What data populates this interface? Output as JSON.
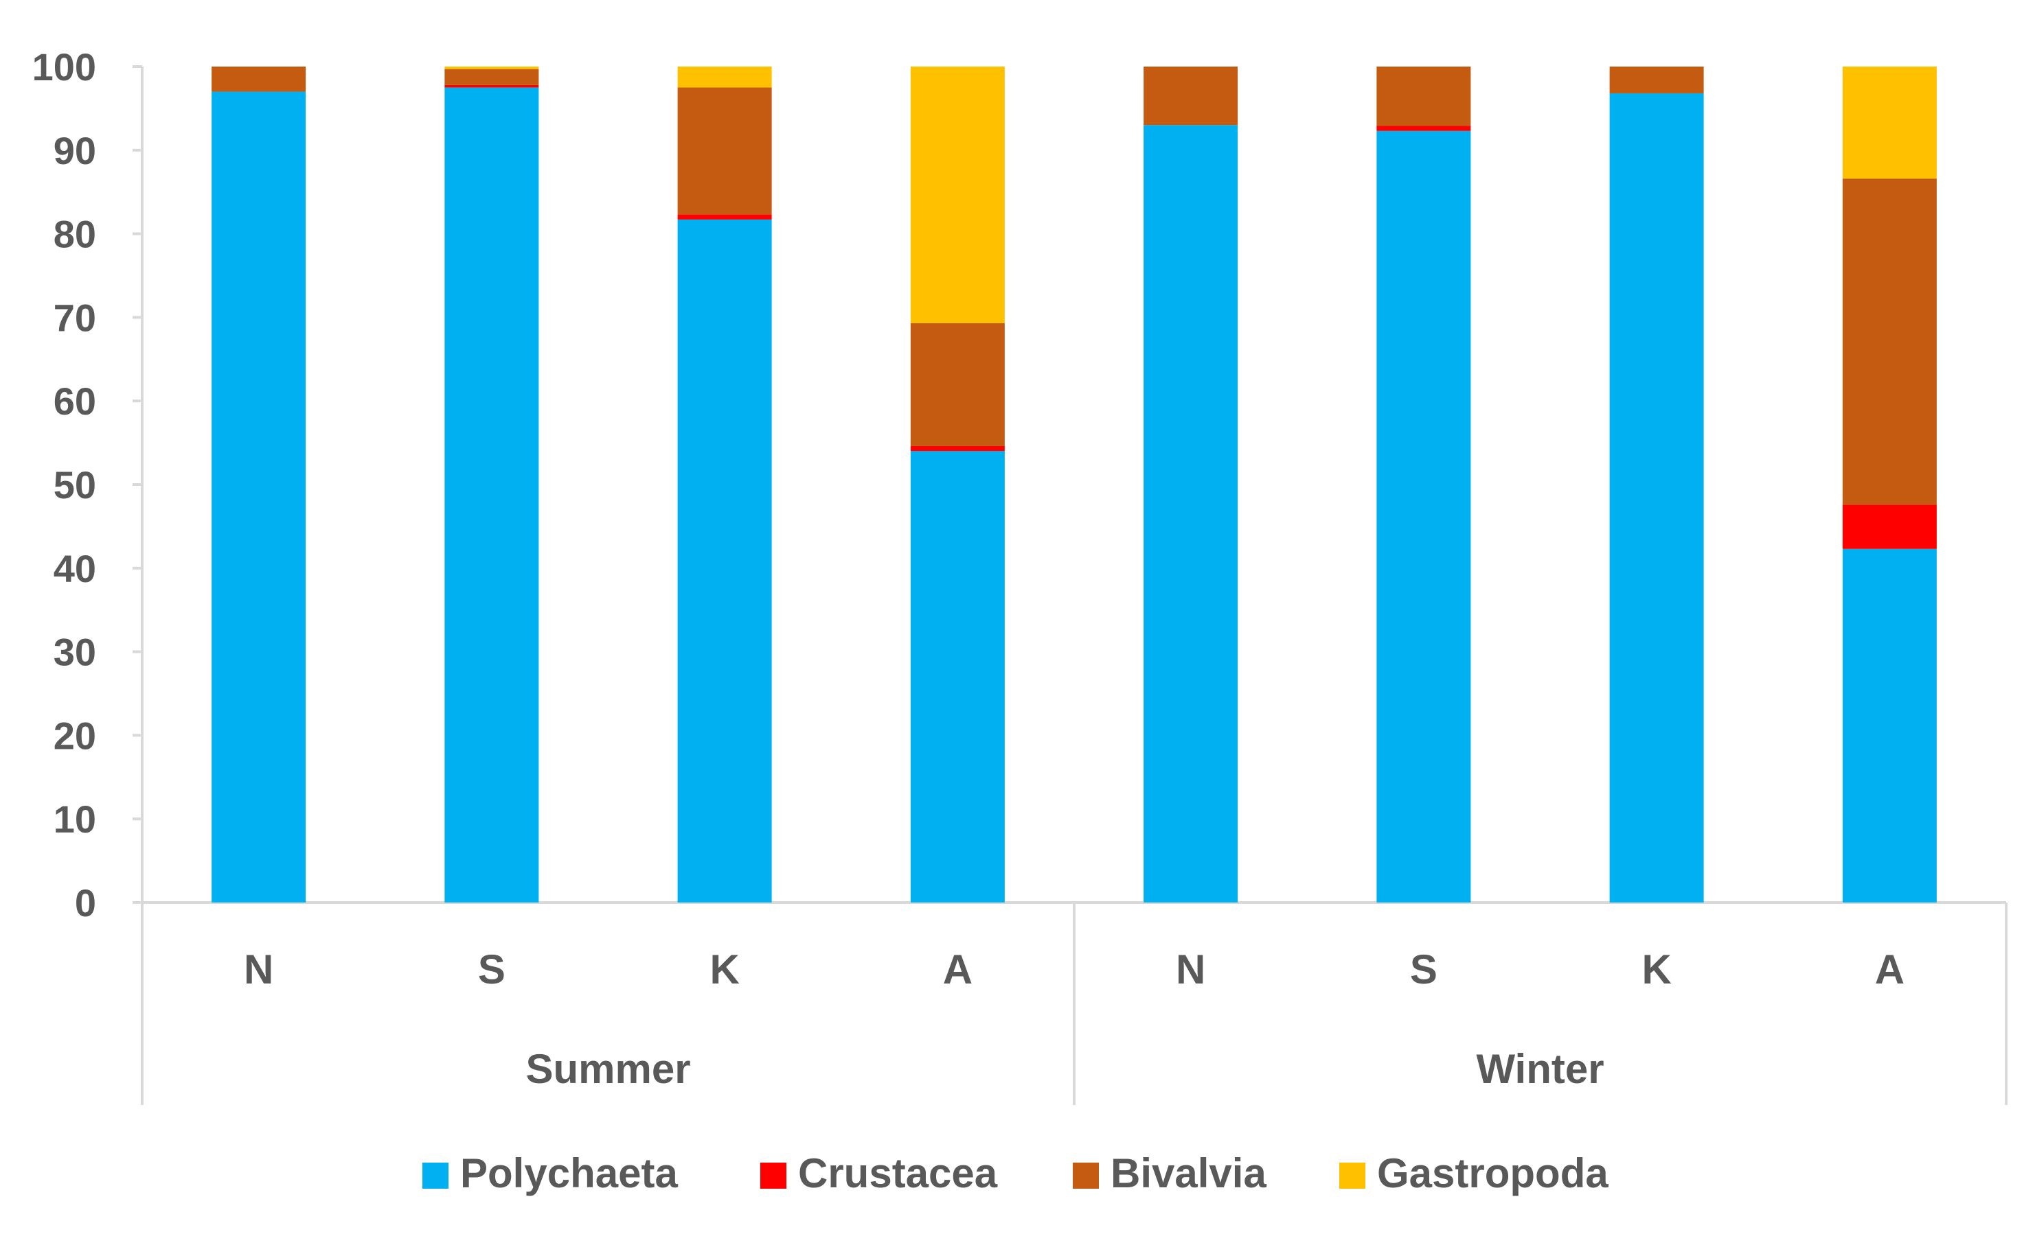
{
  "chart_data": {
    "type": "bar",
    "stacked": true,
    "title": "",
    "xlabel": "",
    "ylabel": "",
    "ylim": [
      0,
      100
    ],
    "yticks": [
      0,
      10,
      20,
      30,
      40,
      50,
      60,
      70,
      80,
      90,
      100
    ],
    "grid": false,
    "legend_position": "bottom",
    "groups": [
      {
        "name": "Summer",
        "categories": [
          "N",
          "S",
          "K",
          "A"
        ]
      },
      {
        "name": "Winter",
        "categories": [
          "N",
          "S",
          "K",
          "A"
        ]
      }
    ],
    "series": [
      {
        "name": "Polychaeta",
        "color": "#00B0F0",
        "values": [
          97.0,
          97.5,
          81.7,
          54.0,
          93.0,
          92.3,
          96.8,
          42.3
        ]
      },
      {
        "name": "Crustacea",
        "color": "#FF0000",
        "values": [
          0.0,
          0.3,
          0.6,
          0.6,
          0.0,
          0.6,
          0.0,
          5.3
        ]
      },
      {
        "name": "Bivalvia",
        "color": "#C55A11",
        "values": [
          3.0,
          1.9,
          15.2,
          14.7,
          7.0,
          7.1,
          3.2,
          39.0
        ]
      },
      {
        "name": "Gastropoda",
        "color": "#FFC000",
        "values": [
          0.0,
          0.3,
          2.5,
          30.7,
          0.0,
          0.0,
          0.0,
          13.4
        ]
      }
    ]
  }
}
